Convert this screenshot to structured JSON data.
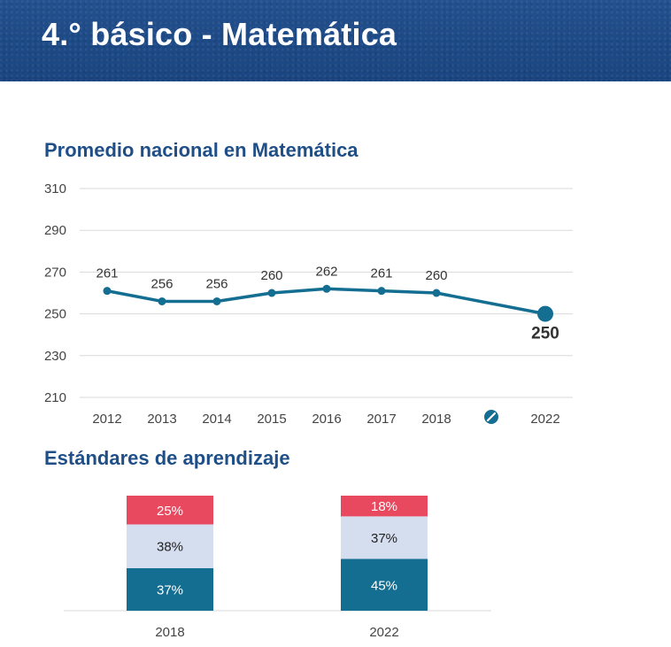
{
  "header": {
    "title": "4.° básico - Matemática"
  },
  "colors": {
    "line": "#146e91",
    "grid": "#d9d9d9",
    "insuficiente": "#e9495f",
    "elemental": "#d5deef",
    "adecuado": "#146e91",
    "section_title": "#1f4f86",
    "banner": "#1d4a86"
  },
  "chart_data": [
    {
      "type": "line",
      "title": "Promedio nacional en Matemática",
      "x": [
        "2012",
        "2013",
        "2014",
        "2015",
        "2016",
        "2017",
        "2018",
        "2022"
      ],
      "break_marker_icon": "no-data-icon",
      "series": [
        {
          "values": [
            261,
            256,
            256,
            260,
            262,
            261,
            260,
            250
          ]
        }
      ],
      "yticks": [
        310,
        290,
        270,
        250,
        230,
        210
      ],
      "ylim": [
        210,
        310
      ],
      "grid": true,
      "legend": "none"
    },
    {
      "type": "bar",
      "stacked": true,
      "title": "Estándares de aprendizaje",
      "categories": [
        "2018",
        "2022"
      ],
      "series": [
        {
          "values": [
            37,
            45
          ],
          "labels": [
            "37%",
            "45%"
          ]
        },
        {
          "values": [
            38,
            37
          ],
          "labels": [
            "38%",
            "37%"
          ]
        },
        {
          "values": [
            25,
            18
          ],
          "labels": [
            "25%",
            "18%"
          ]
        }
      ],
      "grid": false,
      "legend": "none"
    }
  ]
}
